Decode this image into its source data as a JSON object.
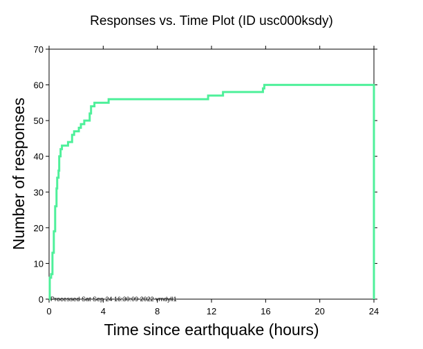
{
  "chart_data": {
    "type": "line",
    "title": "Responses vs. Time Plot (ID usc000ksdy)",
    "xlabel": "Time since earthquake (hours)",
    "ylabel": "Number of responses",
    "xlim": [
      0,
      24
    ],
    "ylim": [
      0,
      70
    ],
    "xticks": [
      0,
      4,
      8,
      12,
      16,
      20,
      24
    ],
    "yticks": [
      0,
      10,
      20,
      30,
      40,
      50,
      60,
      70
    ],
    "grid": false,
    "line_color": "#4ef09a",
    "series": [
      {
        "step": true,
        "points": [
          [
            0.0,
            0
          ],
          [
            0.05,
            6
          ],
          [
            0.15,
            7
          ],
          [
            0.25,
            13
          ],
          [
            0.35,
            19
          ],
          [
            0.45,
            26
          ],
          [
            0.55,
            31
          ],
          [
            0.6,
            34
          ],
          [
            0.7,
            36
          ],
          [
            0.75,
            40
          ],
          [
            0.85,
            42
          ],
          [
            0.95,
            43
          ],
          [
            1.4,
            44
          ],
          [
            1.7,
            46
          ],
          [
            1.85,
            47
          ],
          [
            2.2,
            48
          ],
          [
            2.35,
            49
          ],
          [
            2.6,
            50
          ],
          [
            3.0,
            52
          ],
          [
            3.1,
            54
          ],
          [
            3.35,
            55
          ],
          [
            4.4,
            56
          ],
          [
            11.75,
            57
          ],
          [
            12.85,
            58
          ],
          [
            15.8,
            59
          ],
          [
            15.9,
            60
          ],
          [
            24.0,
            60
          ],
          [
            24.0,
            0
          ]
        ]
      }
    ],
    "footnote": "Processed Sat Sep 24 16:30:09 2022 vmdyll1"
  }
}
